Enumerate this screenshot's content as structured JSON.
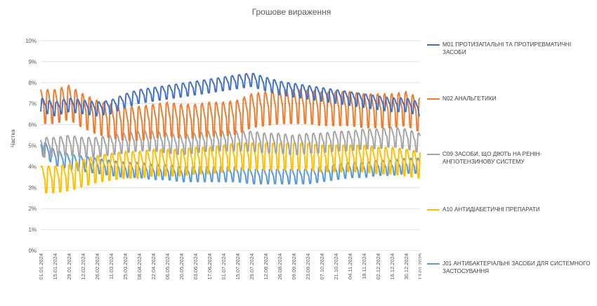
{
  "chart_data": {
    "type": "line",
    "title": "Грошове вираження",
    "ylabel": "Частка",
    "ylim": [
      0,
      10
    ],
    "yticks": [
      "0%",
      "1%",
      "2%",
      "3%",
      "4%",
      "5%",
      "6%",
      "7%",
      "8%",
      "9%",
      "10%"
    ],
    "x_start": "01.01.2024",
    "x_end": "13.01.2025",
    "xtick_labels": [
      "01.01.2024",
      "15.01.2024",
      "29.01.2024",
      "12.02.2024",
      "26.02.2024",
      "11.03.2024",
      "25.03.2024",
      "08.04.2024",
      "22.04.2024",
      "06.05.2024",
      "20.05.2024",
      "03.06.2024",
      "17.06.2024",
      "01.07.2024",
      "15.07.2024",
      "29.07.2024",
      "12.08.2024",
      "26.08.2024",
      "09.09.2024",
      "23.09.2024",
      "07.10.2024",
      "21.10.2024",
      "04.11.2024",
      "18.11.2024",
      "02.12.2024",
      "16.12.2024",
      "30.12.2024",
      "13.01.2025"
    ],
    "legend_position": "right",
    "grid": true,
    "series": [
      {
        "name": "M01 ПРОТИЗАПАЛЬНІ ТА ПРОТИРЕВМАТИЧНІ ЗАСОБИ",
        "color": "#4472C4",
        "x": [
          0,
          14,
          28,
          42,
          56,
          70,
          84,
          98,
          112,
          126,
          140,
          154,
          168,
          182,
          196,
          210,
          224,
          238,
          252,
          266,
          280,
          294,
          308,
          322,
          336,
          350,
          364,
          378
        ],
        "values": [
          7.0,
          6.8,
          7.0,
          6.9,
          6.8,
          6.9,
          7.2,
          7.4,
          7.5,
          7.6,
          7.7,
          7.8,
          7.9,
          8.0,
          8.1,
          8.2,
          8.0,
          7.8,
          7.7,
          7.6,
          7.5,
          7.4,
          7.3,
          7.2,
          7.1,
          7.0,
          7.0,
          6.8
        ]
      },
      {
        "name": "N02 АНАЛЬГЕТИКИ",
        "color": "#ED7D31",
        "x": [
          0,
          14,
          28,
          42,
          56,
          70,
          84,
          98,
          112,
          126,
          140,
          154,
          168,
          182,
          196,
          210,
          224,
          238,
          252,
          266,
          280,
          294,
          308,
          322,
          336,
          350,
          364,
          378
        ],
        "values": [
          7.0,
          7.0,
          7.2,
          6.8,
          6.5,
          6.3,
          6.2,
          6.2,
          6.3,
          6.4,
          6.3,
          6.3,
          6.4,
          6.4,
          6.5,
          6.8,
          6.9,
          7.0,
          7.0,
          7.0,
          6.9,
          6.9,
          6.9,
          6.8,
          6.8,
          6.8,
          6.9,
          6.6
        ]
      },
      {
        "name": "C09 ЗАСОБИ, ЩО ДІЮТЬ НА РЕНІН-АНГІОТЕНЗИНОВУ СИСТЕМУ",
        "color": "#A5A5A5",
        "x": [
          0,
          14,
          28,
          42,
          56,
          70,
          84,
          98,
          112,
          126,
          140,
          154,
          168,
          182,
          196,
          210,
          224,
          238,
          252,
          266,
          280,
          294,
          308,
          322,
          336,
          350,
          364,
          378
        ],
        "values": [
          5.0,
          5.0,
          5.1,
          5.0,
          5.0,
          5.1,
          5.2,
          5.3,
          5.3,
          5.2,
          5.1,
          5.2,
          5.3,
          5.3,
          5.3,
          5.3,
          5.2,
          5.2,
          5.1,
          5.2,
          5.2,
          5.3,
          5.3,
          5.4,
          5.4,
          5.5,
          5.4,
          5.2
        ]
      },
      {
        "name": "A10 АНТИДІАБЕТИЧНІ ПРЕПАРАТИ",
        "color": "#FFC000",
        "x": [
          0,
          14,
          28,
          42,
          56,
          70,
          84,
          98,
          112,
          126,
          140,
          154,
          168,
          182,
          196,
          210,
          224,
          238,
          252,
          266,
          280,
          294,
          308,
          322,
          336,
          350,
          364,
          378
        ],
        "values": [
          3.5,
          3.5,
          3.6,
          3.8,
          4.0,
          4.1,
          4.2,
          4.2,
          4.3,
          4.3,
          4.3,
          4.4,
          4.4,
          4.5,
          4.6,
          4.6,
          4.6,
          4.6,
          4.6,
          4.6,
          4.5,
          4.5,
          4.5,
          4.5,
          4.4,
          4.4,
          4.3,
          4.2
        ]
      },
      {
        "name": "J01 АНТИБАКТЕРІАЛЬНІ ЗАСОБИ ДЛЯ СИСТЕМНОГО ЗАСТОСУВАННЯ",
        "color": "#5B9BD5",
        "x": [
          0,
          14,
          28,
          42,
          56,
          70,
          84,
          98,
          112,
          126,
          140,
          154,
          168,
          182,
          196,
          210,
          224,
          238,
          252,
          266,
          280,
          294,
          308,
          322,
          336,
          350,
          364,
          378
        ],
        "values": [
          5.0,
          4.5,
          4.3,
          4.2,
          4.1,
          4.0,
          3.9,
          3.9,
          3.8,
          3.8,
          3.7,
          3.7,
          3.7,
          3.7,
          3.7,
          3.6,
          3.6,
          3.6,
          3.6,
          3.6,
          3.7,
          3.8,
          3.9,
          3.9,
          4.0,
          4.0,
          4.1,
          4.1
        ]
      }
    ]
  }
}
